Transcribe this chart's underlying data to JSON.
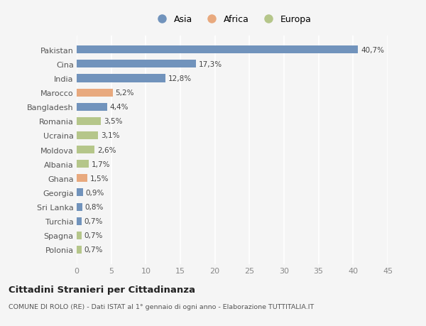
{
  "categories": [
    "Pakistan",
    "Cina",
    "India",
    "Marocco",
    "Bangladesh",
    "Romania",
    "Ucraina",
    "Moldova",
    "Albania",
    "Ghana",
    "Georgia",
    "Sri Lanka",
    "Turchia",
    "Spagna",
    "Polonia"
  ],
  "values": [
    40.7,
    17.3,
    12.8,
    5.2,
    4.4,
    3.5,
    3.1,
    2.6,
    1.7,
    1.5,
    0.9,
    0.8,
    0.7,
    0.7,
    0.7
  ],
  "labels": [
    "40,7%",
    "17,3%",
    "12,8%",
    "5,2%",
    "4,4%",
    "3,5%",
    "3,1%",
    "2,6%",
    "1,7%",
    "1,5%",
    "0,9%",
    "0,8%",
    "0,7%",
    "0,7%",
    "0,7%"
  ],
  "continents": [
    "Asia",
    "Asia",
    "Asia",
    "Africa",
    "Asia",
    "Europa",
    "Europa",
    "Europa",
    "Europa",
    "Africa",
    "Asia",
    "Asia",
    "Asia",
    "Europa",
    "Europa"
  ],
  "colors": {
    "Asia": "#7193bc",
    "Africa": "#e8a97e",
    "Europa": "#b5c68a"
  },
  "legend_labels": [
    "Asia",
    "Africa",
    "Europa"
  ],
  "title": "Cittadini Stranieri per Cittadinanza",
  "subtitle": "COMUNE DI ROLO (RE) - Dati ISTAT al 1° gennaio di ogni anno - Elaborazione TUTTITALIA.IT",
  "xlim": [
    0,
    45
  ],
  "xticks": [
    0,
    5,
    10,
    15,
    20,
    25,
    30,
    35,
    40,
    45
  ],
  "background_color": "#f5f5f5",
  "grid_color": "#ffffff",
  "bar_height": 0.55
}
